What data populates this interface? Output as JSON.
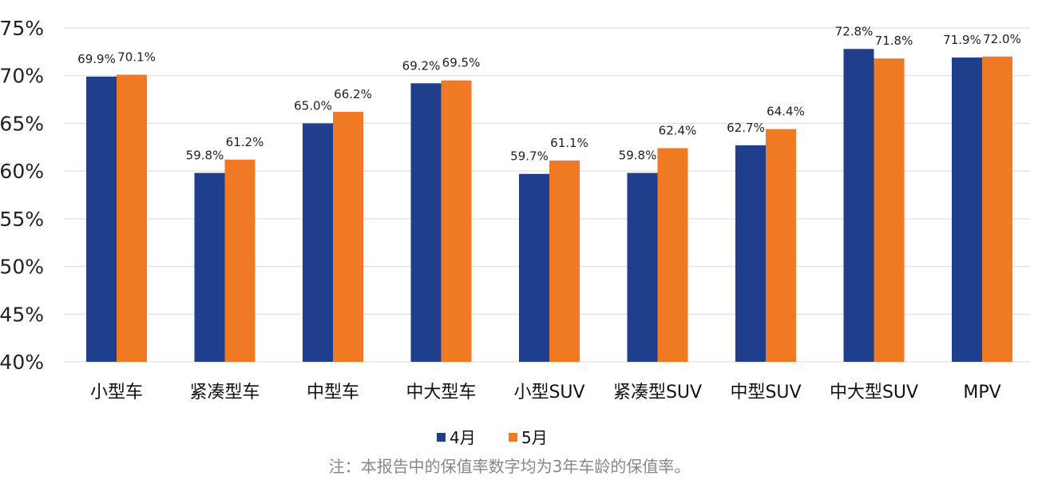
{
  "chart_data": {
    "type": "bar",
    "categories": [
      "小型车",
      "紧凑型车",
      "中型车",
      "中大型车",
      "小型SUV",
      "紧凑型SUV",
      "中型SUV",
      "中大型SUV",
      "MPV"
    ],
    "series": [
      {
        "name": "4月",
        "values": [
          69.9,
          59.8,
          65.0,
          69.2,
          59.7,
          59.8,
          62.7,
          72.8,
          71.9
        ],
        "color": "#1F3F8C"
      },
      {
        "name": "5月",
        "values": [
          70.1,
          61.2,
          66.2,
          69.5,
          61.1,
          62.4,
          64.4,
          71.8,
          72.0
        ],
        "color": "#F07A23"
      }
    ],
    "ylim": [
      40,
      75
    ],
    "yticks": [
      40,
      45,
      50,
      55,
      60,
      65,
      70,
      75
    ],
    "value_suffix": "%",
    "legend_position": "bottom-center",
    "grid": true,
    "note": "注：本报告中的保值率数字均为3年车龄的保值率。"
  },
  "colors": {
    "grid": "#D9D9D9",
    "axis_text": "#222222",
    "note_text": "#888888"
  }
}
